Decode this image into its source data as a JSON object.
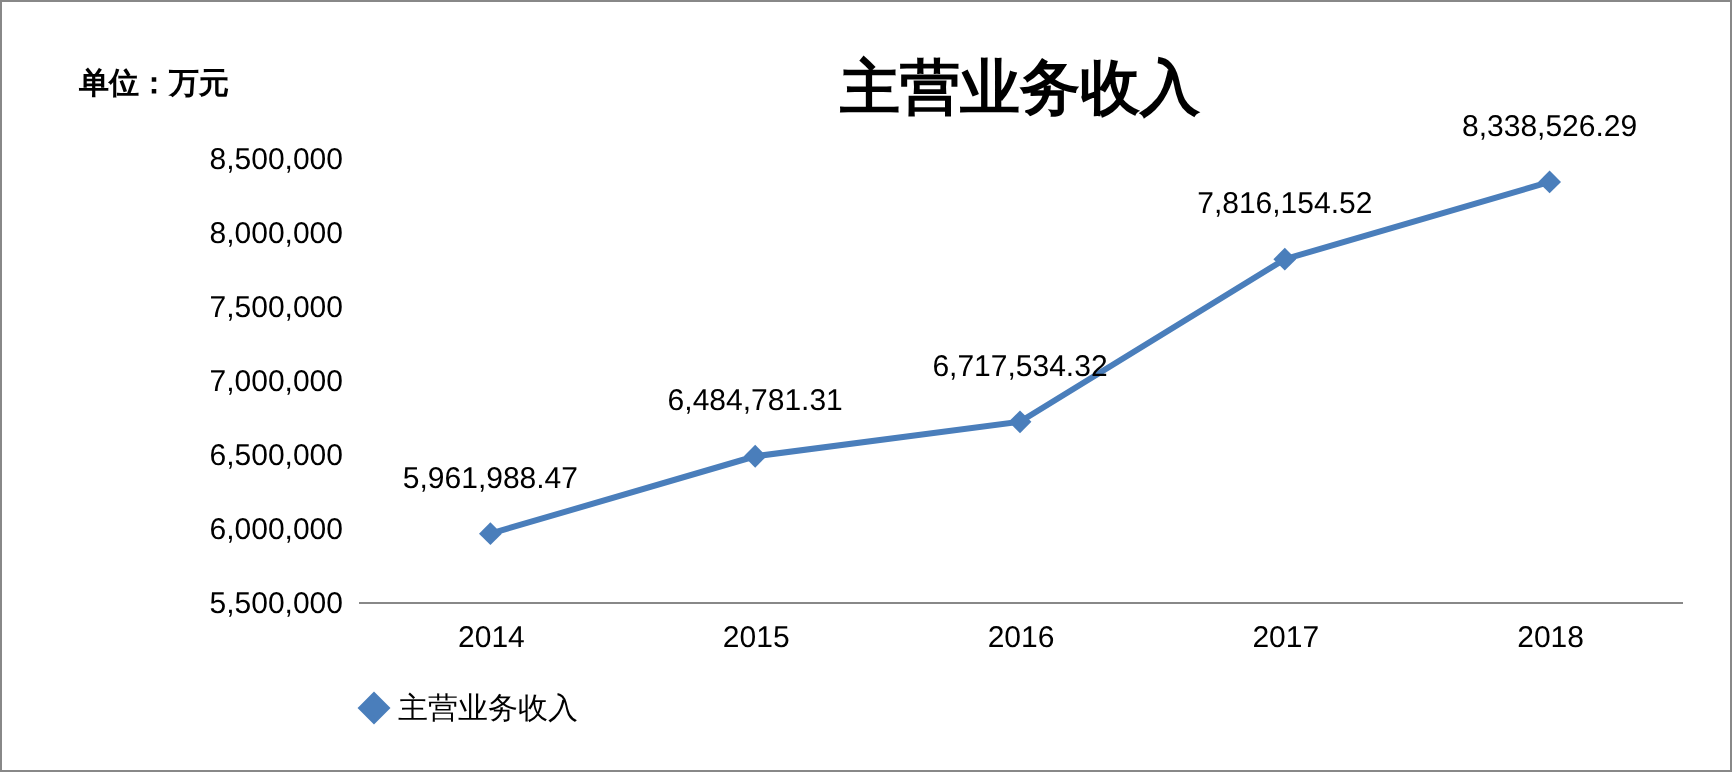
{
  "chart_data": {
    "type": "line",
    "title": "主营业务收入",
    "ylabel": "单位：万元",
    "categories": [
      "2014",
      "2015",
      "2016",
      "2017",
      "2018"
    ],
    "series": [
      {
        "name": "主营业务收入",
        "color": "#4a7ebb",
        "values": [
          5961988.47,
          6484781.31,
          6717534.32,
          7816154.52,
          8338526.29
        ],
        "value_labels": [
          "5,961,988.47",
          "6,484,781.31",
          "6,717,534.32",
          "7,816,154.52",
          "8,338,526.29"
        ]
      }
    ],
    "ylim": [
      5500000,
      8500000
    ],
    "yticks": [
      {
        "value": 5500000,
        "label": "5,500,000"
      },
      {
        "value": 6000000,
        "label": "6,000,000"
      },
      {
        "value": 6500000,
        "label": "6,500,000"
      },
      {
        "value": 7000000,
        "label": "7,000,000"
      },
      {
        "value": 7500000,
        "label": "7,500,000"
      },
      {
        "value": 8000000,
        "label": "8,000,000"
      },
      {
        "value": 8500000,
        "label": "8,500,000"
      }
    ],
    "grid": false,
    "legend": "bottom",
    "marker": "diamond",
    "line_style": "solid"
  }
}
